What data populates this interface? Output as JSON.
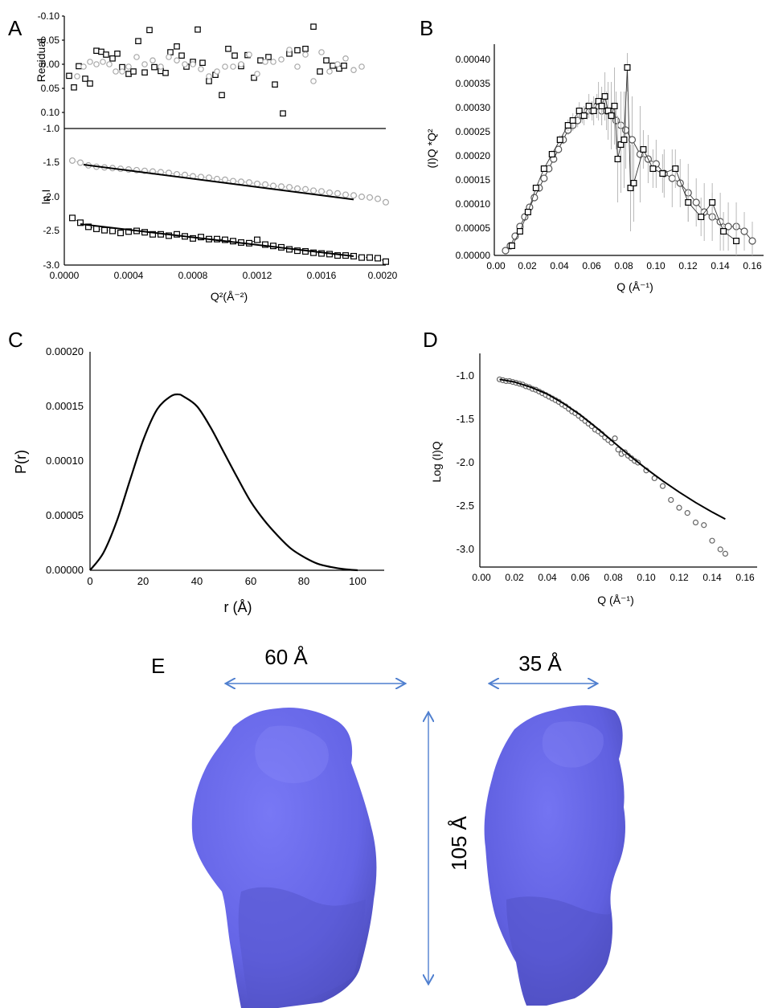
{
  "panels": {
    "A": {
      "letter": "A",
      "residual": {
        "ylabel": "Residual",
        "yticks": [
          "-0.10",
          "-0.05",
          "0.00",
          "0.05",
          "0.10"
        ]
      },
      "main": {
        "ylabel": "ln I",
        "xlabel": "Q²(Å⁻²)",
        "yticks": [
          "-1.0",
          "-1.5",
          "-2.0",
          "-2.5",
          "-3.0"
        ],
        "xticks": [
          "0.0000",
          "0.0004",
          "0.0008",
          "0.0012",
          "0.0016",
          "0.0020"
        ]
      }
    },
    "B": {
      "letter": "B",
      "ylabel": "(I)Q *Q²",
      "xlabel": "Q (Å⁻¹)",
      "yticks": [
        "0.00040",
        "0.00035",
        "0.00030",
        "0.00025",
        "0.00020",
        "0.00015",
        "0.00010",
        "0.00005",
        "0.00000"
      ],
      "xticks": [
        "0.00",
        "0.02",
        "0.04",
        "0.06",
        "0.08",
        "0.10",
        "0.12",
        "0.14",
        "0.16"
      ]
    },
    "C": {
      "letter": "C",
      "ylabel": "P(r)",
      "xlabel": "r (Å)",
      "yticks": [
        "0.00020",
        "0.00015",
        "0.00010",
        "0.00005",
        "0.00000"
      ],
      "xticks": [
        "0",
        "20",
        "40",
        "60",
        "80",
        "100"
      ]
    },
    "D": {
      "letter": "D",
      "ylabel": "Log (I)Q",
      "xlabel": "Q (Å⁻¹)",
      "yticks": [
        "-1.0",
        "-1.5",
        "-2.0",
        "-2.5",
        "-3.0"
      ],
      "xticks": [
        "0.00",
        "0.02",
        "0.04",
        "0.06",
        "0.08",
        "0.10",
        "0.12",
        "0.14",
        "0.16"
      ]
    },
    "E": {
      "letter": "E",
      "width_label": "60 Å",
      "depth_label": "35 Å",
      "height_label": "105 Å",
      "model_color": "#6b6bee",
      "arrow_color": "#4f7fcf"
    }
  },
  "colors": {
    "square_series": "#000000",
    "circle_series": "#a8a8a8",
    "fit_line": "#000000"
  },
  "chart_data": [
    {
      "id": "A-residual",
      "type": "scatter",
      "xlim": [
        0,
        0.002
      ],
      "ylim": [
        -0.1,
        0.1
      ],
      "y_inverted": true,
      "series": [
        {
          "marker": "square",
          "x": [
            3e-05,
            6e-05,
            9e-05,
            0.00013,
            0.00016,
            0.0002,
            0.00023,
            0.00026,
            0.0003,
            0.00033,
            0.00036,
            0.0004,
            0.00043,
            0.00046,
            0.0005,
            0.00053,
            0.00056,
            0.0006,
            0.00063,
            0.00066,
            0.0007,
            0.00073,
            0.00076,
            0.0008,
            0.00083,
            0.00086,
            0.0009,
            0.00094,
            0.00098,
            0.00102,
            0.00106,
            0.0011,
            0.00114,
            0.00118,
            0.00122,
            0.00127,
            0.00131,
            0.00136,
            0.0014,
            0.00145,
            0.0015,
            0.00155,
            0.00159,
            0.00163,
            0.00167,
            0.00171,
            0.00174
          ],
          "y": [
            0.024,
            0.048,
            0.004,
            0.03,
            0.04,
            -0.028,
            -0.026,
            -0.02,
            -0.012,
            -0.022,
            0.006,
            0.02,
            0.015,
            -0.048,
            0.017,
            -0.071,
            0.006,
            0.014,
            0.018,
            -0.025,
            -0.037,
            -0.018,
            0.005,
            -0.005,
            -0.072,
            -0.003,
            0.035,
            0.022,
            0.064,
            -0.032,
            -0.018,
            0.004,
            -0.019,
            0.028,
            -0.008,
            -0.015,
            0.042,
            0.102,
            -0.022,
            -0.029,
            -0.032,
            -0.078,
            0.015,
            -0.008,
            0.003,
            0.009,
            0.003
          ]
        },
        {
          "marker": "circle",
          "x": [
            8e-05,
            0.00012,
            0.00016,
            0.0002,
            0.00024,
            0.00028,
            0.00032,
            0.00036,
            0.0004,
            0.00045,
            0.0005,
            0.00055,
            0.0006,
            0.00065,
            0.0007,
            0.00075,
            0.0008,
            0.00085,
            0.0009,
            0.00095,
            0.001,
            0.00105,
            0.0011,
            0.00115,
            0.0012,
            0.00125,
            0.0013,
            0.00135,
            0.0014,
            0.00145,
            0.0015,
            0.00155,
            0.0016,
            0.00165,
            0.0017,
            0.00175,
            0.0018,
            0.00185
          ],
          "y": [
            0.025,
            0.005,
            -0.005,
            0.0,
            -0.005,
            0.0,
            0.015,
            0.015,
            0.005,
            -0.015,
            0.0,
            -0.008,
            0.005,
            -0.015,
            -0.008,
            0.0,
            0.0,
            0.01,
            0.025,
            0.015,
            0.005,
            0.005,
            0.0,
            -0.02,
            0.02,
            -0.005,
            -0.005,
            -0.01,
            -0.03,
            0.005,
            -0.02,
            0.035,
            -0.025,
            0.015,
            0.0,
            -0.012,
            0.012,
            0.005
          ]
        }
      ]
    },
    {
      "id": "A-guinier",
      "type": "scatter",
      "xlabel": "Q²(Å⁻²)",
      "ylabel": "ln I",
      "xlim": [
        0,
        0.002
      ],
      "ylim": [
        -3.0,
        -1.0
      ],
      "series": [
        {
          "marker": "circle",
          "x": [
            5e-05,
            0.0001,
            0.00015,
            0.0002,
            0.00025,
            0.0003,
            0.00035,
            0.0004,
            0.00045,
            0.0005,
            0.00055,
            0.0006,
            0.00065,
            0.0007,
            0.00075,
            0.0008,
            0.00085,
            0.0009,
            0.00095,
            0.001,
            0.00105,
            0.0011,
            0.00115,
            0.0012,
            0.00125,
            0.0013,
            0.00135,
            0.0014,
            0.00145,
            0.0015,
            0.00155,
            0.0016,
            0.00165,
            0.0017,
            0.00175,
            0.0018,
            0.00185,
            0.0019,
            0.00195,
            0.002
          ],
          "y": [
            -1.47,
            -1.5,
            -1.54,
            -1.56,
            -1.57,
            -1.58,
            -1.59,
            -1.6,
            -1.61,
            -1.62,
            -1.63,
            -1.64,
            -1.65,
            -1.67,
            -1.68,
            -1.7,
            -1.71,
            -1.72,
            -1.74,
            -1.75,
            -1.77,
            -1.78,
            -1.79,
            -1.81,
            -1.82,
            -1.84,
            -1.85,
            -1.86,
            -1.88,
            -1.89,
            -1.91,
            -1.92,
            -1.94,
            -1.95,
            -1.97,
            -1.98,
            -2.0,
            -2.01,
            -2.03,
            -2.08
          ]
        },
        {
          "marker": "square",
          "x": [
            5e-05,
            0.0001,
            0.00015,
            0.0002,
            0.00025,
            0.0003,
            0.00035,
            0.0004,
            0.00045,
            0.0005,
            0.00055,
            0.0006,
            0.00065,
            0.0007,
            0.00075,
            0.0008,
            0.00085,
            0.0009,
            0.00095,
            0.001,
            0.00105,
            0.0011,
            0.00115,
            0.0012,
            0.00125,
            0.0013,
            0.00135,
            0.0014,
            0.00145,
            0.0015,
            0.00155,
            0.0016,
            0.00165,
            0.0017,
            0.00175,
            0.0018,
            0.00185,
            0.0019,
            0.00195,
            0.002
          ],
          "y": [
            -2.31,
            -2.38,
            -2.44,
            -2.47,
            -2.49,
            -2.5,
            -2.53,
            -2.51,
            -2.5,
            -2.52,
            -2.55,
            -2.55,
            -2.57,
            -2.55,
            -2.58,
            -2.61,
            -2.59,
            -2.62,
            -2.62,
            -2.63,
            -2.65,
            -2.67,
            -2.68,
            -2.63,
            -2.7,
            -2.72,
            -2.74,
            -2.77,
            -2.79,
            -2.8,
            -2.82,
            -2.83,
            -2.84,
            -2.86,
            -2.86,
            -2.87,
            -2.89,
            -2.89,
            -2.9,
            -2.95
          ]
        }
      ],
      "fits": [
        {
          "x": [
            0.00012,
            0.0018
          ],
          "y": [
            -1.53,
            -2.04
          ]
        },
        {
          "x": [
            0.0001,
            0.0018
          ],
          "y": [
            -2.4,
            -2.87
          ]
        }
      ]
    },
    {
      "id": "B-kratky",
      "type": "scatter",
      "xlabel": "Q (Å⁻¹)",
      "ylabel": "(I)Q *Q²",
      "xlim": [
        0,
        0.165
      ],
      "ylim": [
        0,
        0.00042
      ],
      "series": [
        {
          "marker": "circle",
          "x": [
            0.006,
            0.009,
            0.012,
            0.015,
            0.018,
            0.021,
            0.024,
            0.027,
            0.03,
            0.033,
            0.036,
            0.039,
            0.042,
            0.045,
            0.048,
            0.051,
            0.054,
            0.057,
            0.06,
            0.063,
            0.066,
            0.069,
            0.072,
            0.075,
            0.078,
            0.081,
            0.085,
            0.09,
            0.095,
            0.1,
            0.105,
            0.11,
            0.115,
            0.12,
            0.125,
            0.13,
            0.135,
            0.14,
            0.145,
            0.15,
            0.155,
            0.16
          ],
          "y": [
            1e-05,
            2e-05,
            4e-05,
            6e-05,
            8e-05,
            0.0001,
            0.00012,
            0.00014,
            0.00016,
            0.00018,
            0.0002,
            0.00022,
            0.00024,
            0.00026,
            0.00027,
            0.00028,
            0.00029,
            0.0003,
            0.0003,
            0.00031,
            0.0003,
            0.0003,
            0.00029,
            0.00028,
            0.00027,
            0.00026,
            0.00024,
            0.00021,
            0.0002,
            0.00019,
            0.00017,
            0.00016,
            0.00015,
            0.00013,
            0.00011,
            9e-05,
            8e-05,
            7e-05,
            6e-05,
            6e-05,
            5e-05,
            3e-05
          ],
          "err": [
            2e-06,
            2e-06,
            3e-06,
            3e-06,
            4e-06,
            4e-06,
            5e-06,
            5e-06,
            6e-06,
            6e-06,
            7e-06,
            8e-06,
            9e-06,
            1e-05,
            1.2e-05,
            1.4e-05,
            1.6e-05,
            1.8e-05,
            2e-05,
            2.5e-05,
            3e-05,
            4e-05,
            5e-05,
            6e-05,
            7e-05,
            8e-05,
            9e-05,
            0.0001,
            5e-05,
            5e-05,
            5e-05,
            6e-05,
            5e-05,
            6e-05,
            5e-05,
            6e-05,
            5e-05,
            6e-05,
            5e-05,
            5e-05,
            4e-05,
            4e-05
          ]
        },
        {
          "marker": "square",
          "x": [
            0.01,
            0.015,
            0.02,
            0.025,
            0.03,
            0.035,
            0.04,
            0.045,
            0.048,
            0.052,
            0.055,
            0.058,
            0.061,
            0.064,
            0.066,
            0.068,
            0.07,
            0.072,
            0.074,
            0.076,
            0.078,
            0.08,
            0.082,
            0.084,
            0.086,
            0.092,
            0.098,
            0.104,
            0.112,
            0.12,
            0.128,
            0.135,
            0.142,
            0.15
          ],
          "y": [
            2e-05,
            5e-05,
            9e-05,
            0.00014,
            0.00018,
            0.00021,
            0.00024,
            0.00027,
            0.00028,
            0.0003,
            0.00029,
            0.00031,
            0.0003,
            0.00032,
            0.00031,
            0.00033,
            0.0003,
            0.00029,
            0.00031,
            0.0002,
            0.00023,
            0.00024,
            0.00039,
            0.00014,
            0.00015,
            0.00022,
            0.00018,
            0.00017,
            0.00018,
            0.00011,
            8e-05,
            0.00011,
            5e-05,
            3e-05
          ],
          "err": [
            3e-06,
            4e-06,
            5e-06,
            6e-06,
            7e-06,
            8e-06,
            1e-05,
            1.2e-05,
            1.5e-05,
            1.8e-05,
            2e-05,
            2.5e-05,
            3e-05,
            4e-05,
            4e-05,
            5e-05,
            6e-05,
            7e-05,
            8e-05,
            9e-05,
            0.0001,
            0.0001,
            5e-05,
            9e-05,
            8e-05,
            4e-05,
            4e-05,
            4e-05,
            4e-05,
            4e-05,
            4e-05,
            4e-05,
            4e-05,
            4e-05
          ]
        }
      ]
    },
    {
      "id": "C-pr",
      "type": "line",
      "xlabel": "r (Å)",
      "ylabel": "P(r)",
      "xlim": [
        0,
        110
      ],
      "ylim": [
        0,
        0.0002
      ],
      "x": [
        0,
        5,
        10,
        15,
        20,
        25,
        30,
        33,
        35,
        40,
        45,
        50,
        55,
        60,
        65,
        70,
        75,
        80,
        85,
        90,
        95,
        100
      ],
      "y": [
        0,
        1.6e-05,
        4.5e-05,
        8.3e-05,
        0.00012,
        0.000147,
        0.000159,
        0.000161,
        0.000159,
        0.00015,
        0.000131,
        0.000108,
        8.5e-05,
        6.3e-05,
        4.6e-05,
        3.2e-05,
        2e-05,
        1.2e-05,
        6e-06,
        3e-06,
        1e-06,
        0
      ]
    },
    {
      "id": "D-fit",
      "type": "scatter",
      "xlabel": "Q (Å⁻¹)",
      "ylabel": "Log (I)Q",
      "xlim": [
        0,
        0.165
      ],
      "ylim": [
        -3.2,
        -0.75
      ],
      "series": [
        {
          "marker": "circle",
          "x": [
            0.011,
            0.013,
            0.015,
            0.017,
            0.019,
            0.021,
            0.023,
            0.025,
            0.027,
            0.029,
            0.031,
            0.033,
            0.035,
            0.037,
            0.039,
            0.041,
            0.043,
            0.045,
            0.047,
            0.049,
            0.051,
            0.053,
            0.055,
            0.057,
            0.059,
            0.061,
            0.063,
            0.065,
            0.067,
            0.069,
            0.071,
            0.073,
            0.075,
            0.077,
            0.079,
            0.081,
            0.083,
            0.085,
            0.087,
            0.089,
            0.091,
            0.093,
            0.095,
            0.1,
            0.105,
            0.11,
            0.115,
            0.12,
            0.125,
            0.13,
            0.135,
            0.14,
            0.145,
            0.148
          ],
          "y": [
            -1.04,
            -1.05,
            -1.06,
            -1.06,
            -1.07,
            -1.08,
            -1.09,
            -1.1,
            -1.12,
            -1.13,
            -1.15,
            -1.16,
            -1.18,
            -1.2,
            -1.22,
            -1.24,
            -1.26,
            -1.28,
            -1.3,
            -1.33,
            -1.35,
            -1.38,
            -1.41,
            -1.43,
            -1.46,
            -1.49,
            -1.52,
            -1.55,
            -1.58,
            -1.62,
            -1.64,
            -1.67,
            -1.71,
            -1.74,
            -1.77,
            -1.72,
            -1.85,
            -1.9,
            -1.88,
            -1.92,
            -1.95,
            -1.98,
            -2.0,
            -2.09,
            -2.18,
            -2.27,
            -2.43,
            -2.52,
            -2.58,
            -2.69,
            -2.72,
            -2.9,
            -3.0,
            -3.05
          ]
        }
      ],
      "fit": {
        "x": [
          0.011,
          0.02,
          0.03,
          0.04,
          0.05,
          0.06,
          0.07,
          0.08,
          0.09,
          0.1,
          0.11,
          0.12,
          0.13,
          0.14,
          0.148
        ],
        "y": [
          -1.04,
          -1.07,
          -1.13,
          -1.21,
          -1.32,
          -1.45,
          -1.6,
          -1.76,
          -1.92,
          -2.07,
          -2.21,
          -2.34,
          -2.46,
          -2.57,
          -2.65
        ]
      }
    }
  ]
}
